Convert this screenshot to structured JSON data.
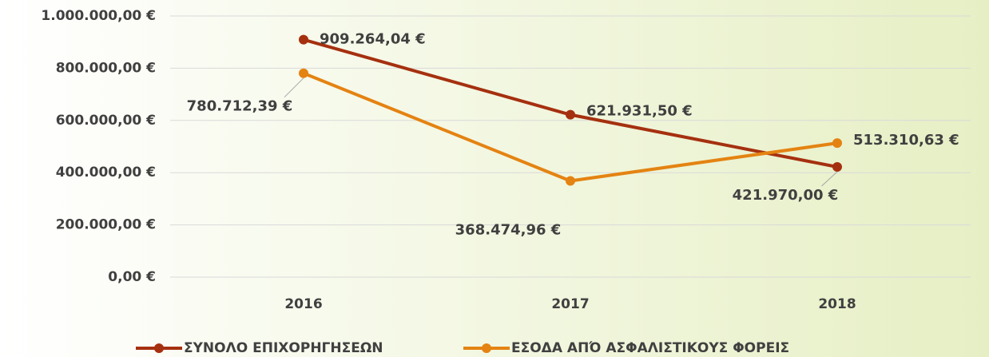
{
  "chart_data": {
    "type": "line",
    "categories": [
      "2016",
      "2017",
      "2018"
    ],
    "series": [
      {
        "name": "ΣΥΝΟΛΟ ΕΠΙΧΟΡΗΓΗΣΕΩΝ",
        "color": "#a5300f",
        "values": [
          909264.04,
          621931.5,
          421970.0
        ],
        "value_labels": [
          "909.264,04 €",
          "621.931,50 €",
          "421.970,00 €"
        ]
      },
      {
        "name": "ΕΣΟΔΑ ΑΠΌ ΑΣΦΑΛΙΣΤΙΚΟΥΣ ΦΟΡΕΙΣ",
        "color": "#e48312",
        "values": [
          780712.39,
          368474.96,
          513310.63
        ],
        "value_labels": [
          "780.712,39 €",
          "368.474,96 €",
          "513.310,63 €"
        ]
      }
    ],
    "ylim": [
      0,
      1000000
    ],
    "yticks": [
      {
        "value": 0,
        "label": "0,00 €"
      },
      {
        "value": 200000,
        "label": "200.000,00 €"
      },
      {
        "value": 400000,
        "label": "400.000,00 €"
      },
      {
        "value": 600000,
        "label": "600.000,00 €"
      },
      {
        "value": 800000,
        "label": "800.000,00 €"
      },
      {
        "value": 1000000,
        "label": "1.000.000,00 €"
      }
    ],
    "grid": true,
    "legend": "bottom"
  }
}
